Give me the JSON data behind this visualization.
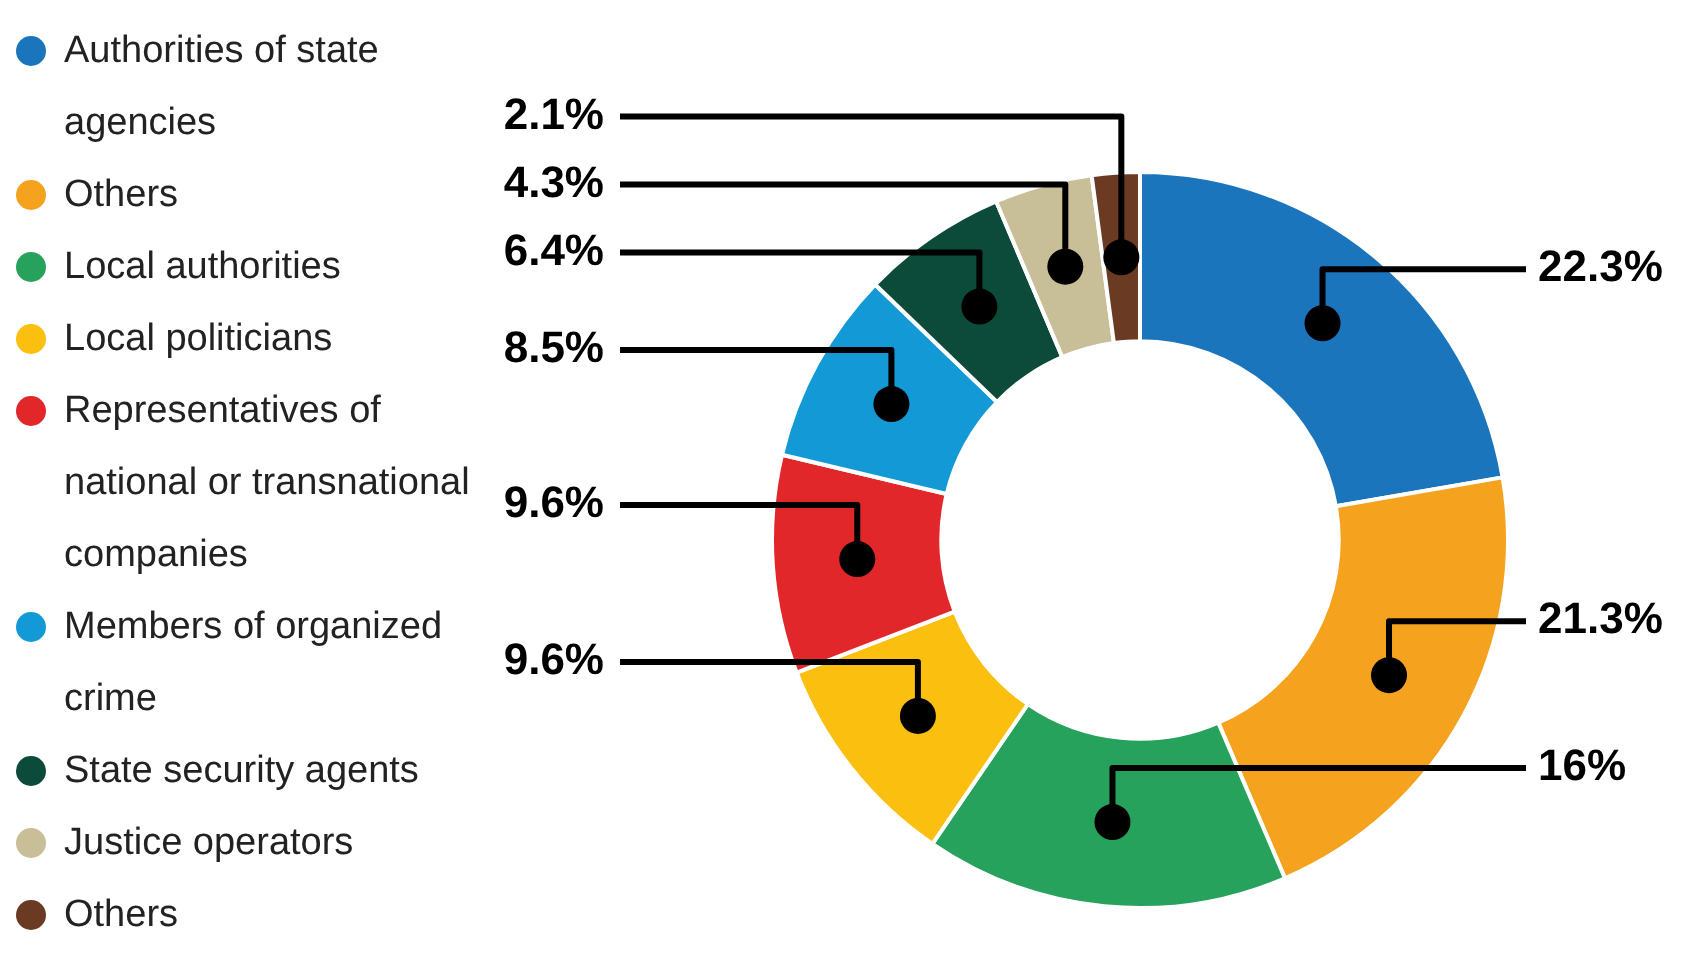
{
  "chart_data": {
    "type": "donut",
    "categories": [
      "Authorities of state agencies",
      "Others",
      "Local authorities",
      "Local politicians",
      "Representatives of national or transnational companies",
      "Members of organized crime",
      "State security agents",
      "Justice operators",
      "Others"
    ],
    "values": [
      22.3,
      21.3,
      16,
      9.6,
      9.6,
      8.5,
      6.4,
      4.3,
      2.1
    ],
    "colors": [
      "#1b75bc",
      "#f5a21f",
      "#27a25d",
      "#fbbf0f",
      "#e1272a",
      "#139ad6",
      "#0c4a3a",
      "#c8bf98",
      "#6b3a22"
    ],
    "value_labels": [
      "22.3%",
      "21.3%",
      "16%",
      "9.6%",
      "9.6%",
      "8.5%",
      "6.4%",
      "4.3%",
      "2.1%"
    ],
    "legend": "left"
  }
}
